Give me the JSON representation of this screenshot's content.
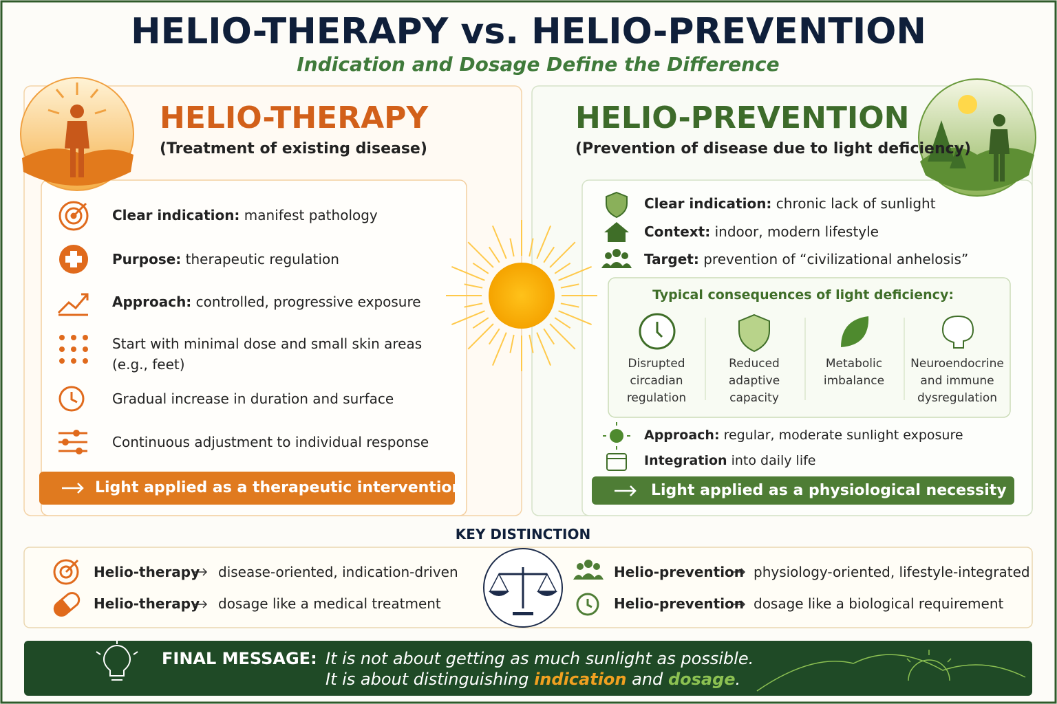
{
  "header": {
    "title": "HELIO-THERAPY vs. HELIO-PREVENTION",
    "subtitle": "Indication and Dosage Define the Difference"
  },
  "therapy": {
    "title": "HELIO-THERAPY",
    "subtitle": "(Treatment of existing disease)",
    "items": [
      {
        "label": "Clear indication:",
        "text": "manifest pathology"
      },
      {
        "label": "Purpose:",
        "text": "therapeutic regulation"
      },
      {
        "label": "Approach:",
        "text": "controlled, progressive exposure"
      },
      {
        "lines": [
          "Start with minimal dose and small skin areas",
          "(e.g., feet)"
        ]
      },
      {
        "text": "Gradual increase in duration and surface"
      },
      {
        "text": "Continuous adjustment to individual response"
      }
    ],
    "conclusion": "Light applied as a therapeutic intervention"
  },
  "prevention": {
    "title": "HELIO-PREVENTION",
    "subtitle": "(Prevention of disease due to light deficiency)",
    "items": [
      {
        "label": "Clear indication:",
        "text": "chronic lack of sunlight"
      },
      {
        "label": "Context:",
        "text": "indoor, modern lifestyle"
      },
      {
        "label": "Target:",
        "text": "prevention of “civilizational anhelosis”"
      }
    ],
    "consequences_title": "Typical consequences of light deficiency:",
    "consequences": [
      [
        "Disrupted",
        "circadian",
        "regulation"
      ],
      [
        "Reduced",
        "adaptive",
        "capacity"
      ],
      [
        "Metabolic",
        "imbalance"
      ],
      [
        "Neuroendocrine",
        "and immune",
        "dysregulation"
      ]
    ],
    "approach": [
      {
        "label": "Approach:",
        "text": "regular, moderate sunlight exposure"
      },
      {
        "label": "Integration",
        "text": "into daily life"
      }
    ],
    "conclusion": "Light applied as a physiological necessity"
  },
  "key_distinction": {
    "title": "KEY DISTINCTION",
    "left": [
      {
        "label": "Helio-therapy",
        "text": "disease-oriented, indication-driven"
      },
      {
        "label": "Helio-therapy",
        "text": "dosage like a medical treatment"
      }
    ],
    "right": [
      {
        "label": "Helio-prevention",
        "text": "physiology-oriented, lifestyle-integrated"
      },
      {
        "label": "Helio-prevention",
        "text": "dosage like a biological requirement"
      }
    ]
  },
  "final_message": {
    "label": "FINAL MESSAGE:",
    "line1": "It is not about getting as much sunlight as possible.",
    "line2": [
      "It is about distinguishing",
      "indication",
      "and",
      "dosage",
      "."
    ]
  }
}
